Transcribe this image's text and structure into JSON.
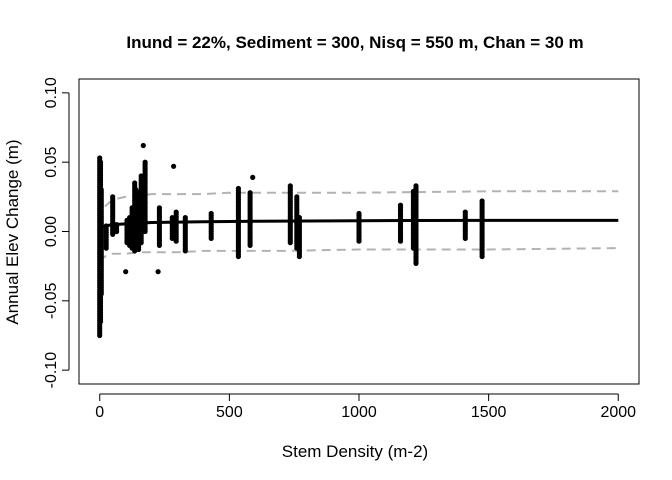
{
  "chart_data": {
    "type": "scatter",
    "title": "Inund = 22%, Sediment = 300, Nisq = 550 m, Chan = 30 m",
    "xlabel": "Stem Density (m-2)",
    "ylabel": "Annual Elev Change (m)",
    "xlim": [
      -80,
      2080
    ],
    "ylim": [
      -0.11,
      0.11
    ],
    "xticks": [
      0,
      500,
      1000,
      1500,
      2000
    ],
    "xtick_labels": [
      "0",
      "500",
      "1000",
      "1500",
      "2000"
    ],
    "yticks": [
      -0.1,
      -0.05,
      0.0,
      0.05,
      0.1
    ],
    "ytick_labels": [
      "-0.10",
      "-0.05",
      "0.00",
      "0.05",
      "0.10"
    ],
    "grid": false,
    "colors": {
      "points": "#000000",
      "fit": "#000000",
      "band": "#b3b3b3"
    },
    "point_columns": [
      {
        "x": 0,
        "ymin": -0.075,
        "ymax": 0.053
      },
      {
        "x": 3,
        "ymin": -0.065,
        "ymax": 0.05
      },
      {
        "x": 6,
        "ymin": -0.045,
        "ymax": 0.03
      },
      {
        "x": 25,
        "ymin": -0.012,
        "ymax": 0.004
      },
      {
        "x": 50,
        "ymin": -0.002,
        "ymax": 0.025
      },
      {
        "x": 65,
        "ymin": 0.0,
        "ymax": 0.005
      },
      {
        "x": 100,
        "ymin": -0.029,
        "ymax": -0.029
      },
      {
        "x": 105,
        "ymin": -0.008,
        "ymax": 0.008
      },
      {
        "x": 115,
        "ymin": -0.01,
        "ymax": 0.01
      },
      {
        "x": 125,
        "ymin": -0.012,
        "ymax": 0.017
      },
      {
        "x": 135,
        "ymin": -0.014,
        "ymax": 0.035
      },
      {
        "x": 140,
        "ymin": -0.01,
        "ymax": 0.03
      },
      {
        "x": 150,
        "ymin": -0.013,
        "ymax": 0.028
      },
      {
        "x": 160,
        "ymin": -0.008,
        "ymax": 0.04
      },
      {
        "x": 168,
        "ymin": 0.062,
        "ymax": 0.062
      },
      {
        "x": 175,
        "ymin": 0.0,
        "ymax": 0.05
      },
      {
        "x": 225,
        "ymin": -0.029,
        "ymax": -0.029
      },
      {
        "x": 230,
        "ymin": -0.01,
        "ymax": 0.017
      },
      {
        "x": 280,
        "ymin": -0.005,
        "ymax": 0.01
      },
      {
        "x": 285,
        "ymin": 0.047,
        "ymax": 0.047
      },
      {
        "x": 295,
        "ymin": -0.007,
        "ymax": 0.014
      },
      {
        "x": 330,
        "ymin": -0.014,
        "ymax": 0.01
      },
      {
        "x": 430,
        "ymin": -0.005,
        "ymax": 0.013
      },
      {
        "x": 535,
        "ymin": -0.018,
        "ymax": 0.031
      },
      {
        "x": 580,
        "ymin": -0.01,
        "ymax": 0.028
      },
      {
        "x": 590,
        "ymin": 0.039,
        "ymax": 0.039
      },
      {
        "x": 735,
        "ymin": -0.008,
        "ymax": 0.033
      },
      {
        "x": 760,
        "ymin": -0.012,
        "ymax": 0.025
      },
      {
        "x": 770,
        "ymin": -0.018,
        "ymax": 0.01
      },
      {
        "x": 1000,
        "ymin": -0.007,
        "ymax": 0.013
      },
      {
        "x": 1160,
        "ymin": -0.007,
        "ymax": 0.019
      },
      {
        "x": 1210,
        "ymin": -0.012,
        "ymax": 0.029
      },
      {
        "x": 1220,
        "ymin": -0.023,
        "ymax": 0.033
      },
      {
        "x": 1410,
        "ymin": -0.005,
        "ymax": 0.014
      },
      {
        "x": 1475,
        "ymin": -0.018,
        "ymax": 0.022
      }
    ],
    "series": [
      {
        "x": [
          0,
          20,
          50,
          100,
          150,
          200,
          300,
          400,
          500,
          600,
          800,
          1000,
          1200,
          1500,
          1800,
          2000
        ],
        "y": [
          0.003,
          0.004,
          0.005,
          0.0055,
          0.006,
          0.0065,
          0.0068,
          0.007,
          0.0072,
          0.0074,
          0.0076,
          0.0078,
          0.0079,
          0.008,
          0.008,
          0.008
        ]
      },
      {
        "x": [
          0,
          20,
          50,
          100,
          150,
          200,
          300,
          400,
          500,
          700,
          1000,
          1500,
          2000
        ],
        "y": [
          0.008,
          0.018,
          0.023,
          0.025,
          0.026,
          0.027,
          0.027,
          0.027,
          0.028,
          0.028,
          0.028,
          0.029,
          0.029
        ]
      },
      {
        "x": [
          0,
          20,
          50,
          100,
          150,
          200,
          300,
          400,
          500,
          700,
          1000,
          1500,
          2000
        ],
        "y": [
          -0.022,
          -0.018,
          -0.016,
          -0.016,
          -0.015,
          -0.015,
          -0.015,
          -0.014,
          -0.014,
          -0.014,
          -0.013,
          -0.013,
          -0.012
        ]
      }
    ]
  }
}
